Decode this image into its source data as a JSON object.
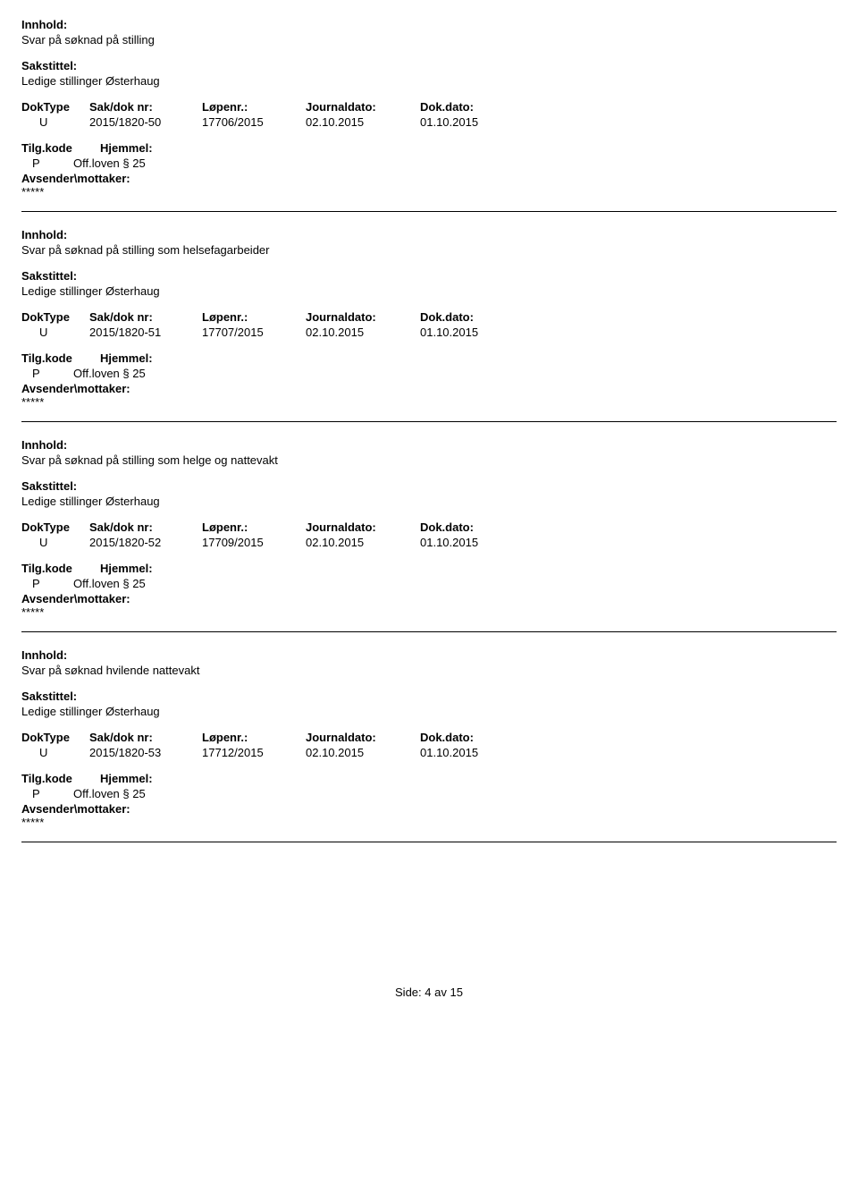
{
  "labels": {
    "innhold": "Innhold:",
    "sakstittel": "Sakstittel:",
    "doktype": "DokType",
    "sakdok": "Sak/dok nr:",
    "lopenr": "Løpenr.:",
    "journaldato": "Journaldato:",
    "dokdato": "Dok.dato:",
    "tilgkode": "Tilg.kode",
    "hjemmel": "Hjemmel:",
    "avsender": "Avsender\\mottaker:"
  },
  "entries": [
    {
      "innhold": "Svar på søknad på stilling",
      "sakstittel": "Ledige stillinger Østerhaug",
      "doktype": "U",
      "sakdok": "2015/1820-50",
      "lopenr": "17706/2015",
      "journaldato": "02.10.2015",
      "dokdato": "01.10.2015",
      "tilgkode": "P",
      "hjemmel": "Off.loven § 25",
      "avsender": "*****"
    },
    {
      "innhold": "Svar på søknad på stilling som helsefagarbeider",
      "sakstittel": "Ledige stillinger Østerhaug",
      "doktype": "U",
      "sakdok": "2015/1820-51",
      "lopenr": "17707/2015",
      "journaldato": "02.10.2015",
      "dokdato": "01.10.2015",
      "tilgkode": "P",
      "hjemmel": "Off.loven § 25",
      "avsender": "*****"
    },
    {
      "innhold": "Svar på søknad på stilling som helge og nattevakt",
      "sakstittel": "Ledige stillinger Østerhaug",
      "doktype": "U",
      "sakdok": "2015/1820-52",
      "lopenr": "17709/2015",
      "journaldato": "02.10.2015",
      "dokdato": "01.10.2015",
      "tilgkode": "P",
      "hjemmel": "Off.loven § 25",
      "avsender": "*****"
    },
    {
      "innhold": "Svar på søknad hvilende nattevakt",
      "sakstittel": "Ledige stillinger Østerhaug",
      "doktype": "U",
      "sakdok": "2015/1820-53",
      "lopenr": "17712/2015",
      "journaldato": "02.10.2015",
      "dokdato": "01.10.2015",
      "tilgkode": "P",
      "hjemmel": "Off.loven § 25",
      "avsender": "*****"
    }
  ],
  "footer": {
    "prefix": "Side:",
    "current": "4",
    "sep": "av",
    "total": "15"
  }
}
